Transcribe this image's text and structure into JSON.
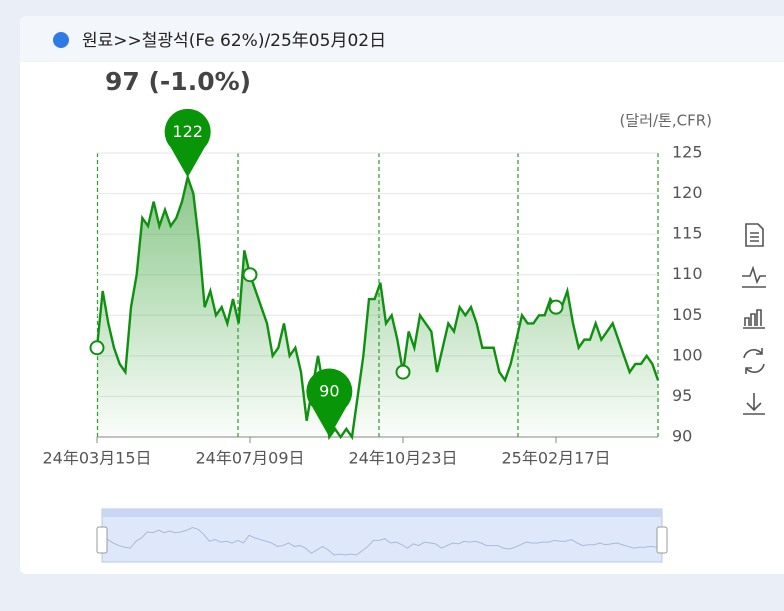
{
  "chart_data": {
    "type": "line",
    "title": "원료>>철광석(Fe 62%)/25年05月02日",
    "subtitle": "97 (-1.0%)",
    "y_label": "(달러/톤,CFR)",
    "color": "#109010",
    "categories": [
      "24年03月15日",
      null,
      null,
      null,
      null,
      null,
      null,
      null,
      null,
      null,
      null,
      null,
      null,
      null,
      null,
      null,
      null,
      null,
      null,
      null,
      null,
      null,
      null,
      null,
      null,
      null,
      null,
      "24年07月09日",
      null,
      null,
      null,
      null,
      null,
      null,
      null,
      null,
      null,
      null,
      null,
      null,
      null,
      null,
      null,
      null,
      null,
      null,
      null,
      null,
      null,
      null,
      null,
      null,
      null,
      null,
      "24年10月23日",
      null,
      null,
      null,
      null,
      null,
      null,
      null,
      null,
      null,
      null,
      null,
      null,
      null,
      null,
      null,
      null,
      null,
      null,
      null,
      null,
      null,
      null,
      null,
      null,
      null,
      null,
      "25年02月17日",
      null,
      null,
      null,
      null,
      null,
      null,
      null,
      null,
      null,
      null,
      null,
      null,
      null,
      null,
      null,
      null,
      null,
      null
    ],
    "values": [
      101,
      108,
      104,
      101,
      99,
      98,
      106,
      110,
      117,
      116,
      119,
      116,
      118,
      116,
      117,
      119,
      122,
      120,
      114,
      106,
      108,
      105,
      106,
      104,
      107,
      104,
      113,
      110,
      108,
      106,
      104,
      100,
      101,
      104,
      100,
      101,
      98,
      92,
      96,
      100,
      96,
      90,
      91,
      90,
      91,
      90,
      95,
      100,
      107,
      107,
      109,
      104,
      105,
      102,
      98,
      103,
      101,
      105,
      104,
      103,
      98,
      101,
      104,
      103,
      106,
      105,
      106,
      104,
      101,
      101,
      101,
      98,
      97,
      99,
      102,
      105,
      104,
      104,
      105,
      105,
      107,
      106,
      106,
      108,
      104,
      101,
      102,
      102,
      104,
      102,
      103,
      104,
      102,
      100,
      98,
      99,
      99,
      100,
      99,
      97
    ],
    "ylim": [
      90,
      125
    ],
    "yticks": [
      90,
      95,
      100,
      105,
      110,
      115,
      120,
      125
    ],
    "grid": true
  }
}
